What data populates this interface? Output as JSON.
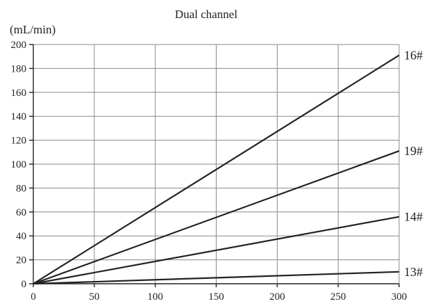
{
  "chart_data": {
    "type": "line",
    "title": "Dual channel",
    "ylabel": "(mL/min)",
    "xlabel": "",
    "xlim": [
      0,
      300
    ],
    "ylim": [
      0,
      200
    ],
    "xticks": [
      0,
      50,
      100,
      150,
      200,
      250,
      300
    ],
    "yticks": [
      0,
      20,
      40,
      60,
      80,
      100,
      120,
      140,
      160,
      180,
      200
    ],
    "grid": true,
    "legend": "labels at right end of lines",
    "series": [
      {
        "name": "16#",
        "x": [
          0,
          300
        ],
        "y": [
          0,
          191
        ]
      },
      {
        "name": "19#",
        "x": [
          0,
          300
        ],
        "y": [
          0,
          111
        ]
      },
      {
        "name": "14#",
        "x": [
          0,
          300
        ],
        "y": [
          0,
          56
        ]
      },
      {
        "name": "13#",
        "x": [
          0,
          300
        ],
        "y": [
          0,
          10
        ]
      }
    ]
  }
}
